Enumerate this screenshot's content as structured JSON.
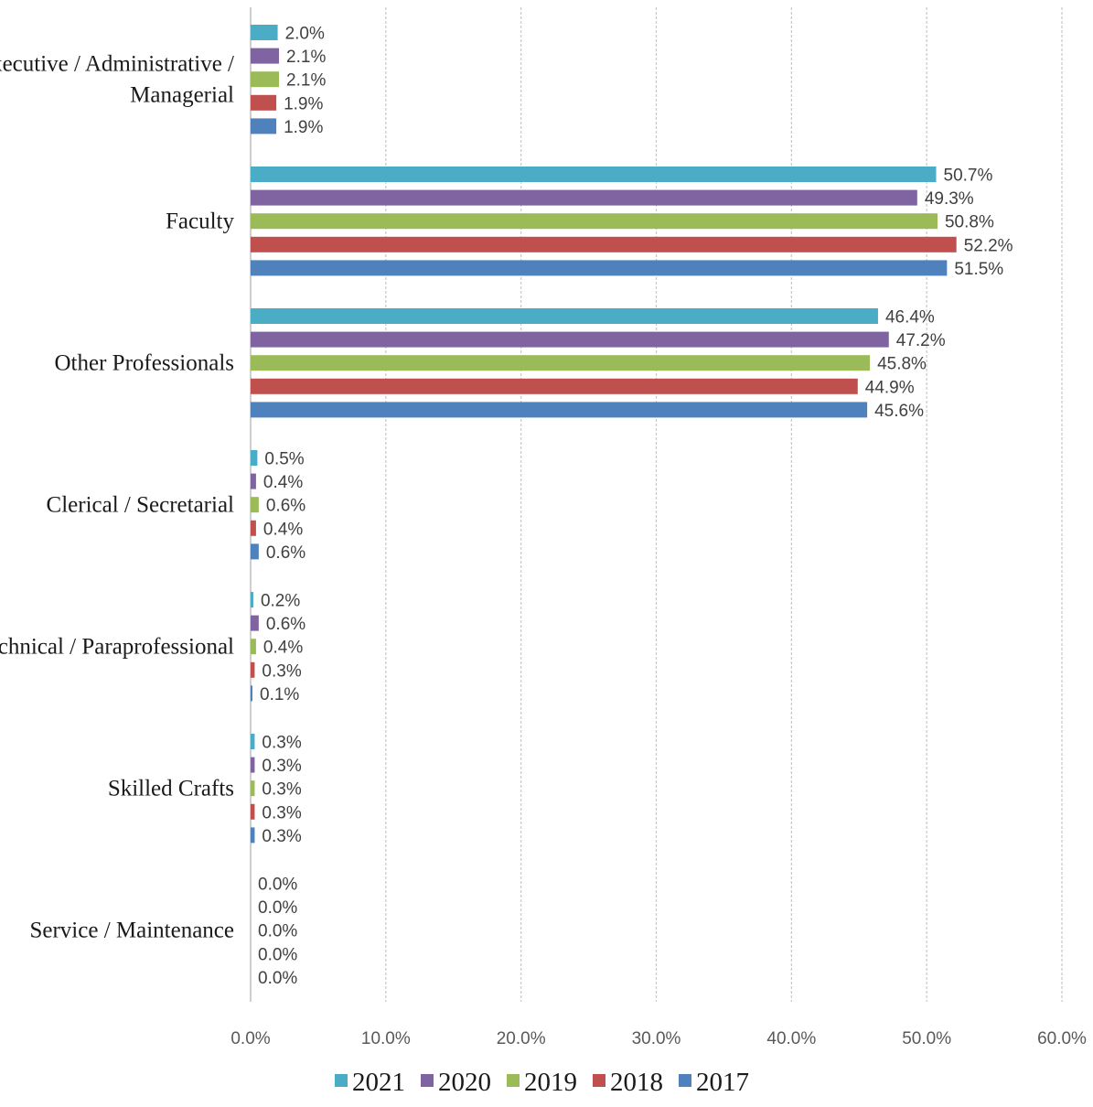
{
  "chart_data": {
    "type": "bar",
    "orientation": "horizontal",
    "categories": [
      "Executive / Administrative / Managerial",
      "Faculty",
      "Other Professionals",
      "Clerical / Secretarial",
      "Technical / Paraprofessional",
      "Skilled Crafts",
      "Service / Maintenance"
    ],
    "category_lines": [
      [
        "Executive / Administrative /",
        "Managerial"
      ],
      [
        "Faculty"
      ],
      [
        "Other Professionals"
      ],
      [
        "Clerical / Secretarial"
      ],
      [
        "Technical / Paraprofessional"
      ],
      [
        "Skilled Crafts"
      ],
      [
        "Service / Maintenance"
      ]
    ],
    "series": [
      {
        "name": "2021",
        "color": "#4BACC6",
        "values": [
          2.0,
          50.7,
          46.4,
          0.5,
          0.2,
          0.3,
          0.0
        ],
        "labels": [
          "2.0%",
          "50.7%",
          "46.4%",
          "0.5%",
          "0.2%",
          "0.3%",
          "0.0%"
        ]
      },
      {
        "name": "2020",
        "color": "#8064A2",
        "values": [
          2.1,
          49.3,
          47.2,
          0.4,
          0.6,
          0.3,
          0.0
        ],
        "labels": [
          "2.1%",
          "49.3%",
          "47.2%",
          "0.4%",
          "0.6%",
          "0.3%",
          "0.0%"
        ]
      },
      {
        "name": "2019",
        "color": "#9BBB59",
        "values": [
          2.1,
          50.8,
          45.8,
          0.6,
          0.4,
          0.3,
          0.0
        ],
        "labels": [
          "2.1%",
          "50.8%",
          "45.8%",
          "0.6%",
          "0.4%",
          "0.3%",
          "0.0%"
        ]
      },
      {
        "name": "2018",
        "color": "#C0504D",
        "values": [
          1.9,
          52.2,
          44.9,
          0.4,
          0.3,
          0.3,
          0.0
        ],
        "labels": [
          "1.9%",
          "52.2%",
          "44.9%",
          "0.4%",
          "0.3%",
          "0.3%",
          "0.0%"
        ]
      },
      {
        "name": "2017",
        "color": "#4F81BD",
        "values": [
          1.9,
          51.5,
          45.6,
          0.6,
          0.1,
          0.3,
          0.0
        ],
        "labels": [
          "1.9%",
          "51.5%",
          "45.6%",
          "0.6%",
          "0.1%",
          "0.3%",
          "0.0%"
        ]
      }
    ],
    "xlim": [
      0,
      60
    ],
    "xticks": [
      0,
      10,
      20,
      30,
      40,
      50,
      60
    ],
    "xtick_labels": [
      "0.0%",
      "10.0%",
      "20.0%",
      "30.0%",
      "40.0%",
      "50.0%",
      "60.0%"
    ],
    "grid": true,
    "legend_position": "bottom",
    "title": "",
    "xlabel": "",
    "ylabel": ""
  }
}
